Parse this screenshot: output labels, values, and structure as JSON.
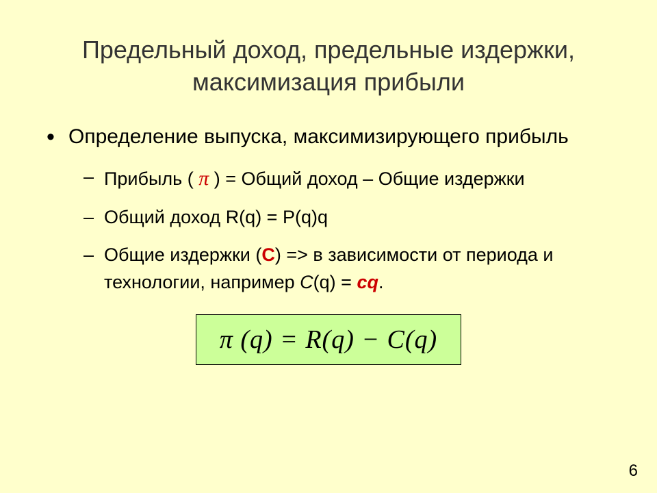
{
  "slide": {
    "background_color": "#ffffcc",
    "title": "Предельный доход, предельные издержки, максимизация прибыли",
    "title_color": "#333333",
    "title_fontsize": 36,
    "body_fontsize": 30,
    "sub_fontsize": 27,
    "text_color": "#000000",
    "accent_color": "#cc0000",
    "bullet_main": "Определение выпуска, максимизирующего прибыль",
    "sub_prefix_1": "Прибыль ( ",
    "sub_pi": "π",
    "sub_suffix_1": " ) = Общий доход – Общие издержки",
    "sub_2": "Общий доход R(q) = P(q)q",
    "sub_prefix_3a": "Общие издержки (",
    "sub_c_red": "C",
    "sub_mid_3": ") => в зависимости от периода и технологии, например ",
    "sub_cq": "C",
    "sub_q": "(q) = ",
    "sub_cq_red": "cq",
    "sub_period": ".",
    "formula": {
      "text": "π (q)  =  R(q) − C(q)",
      "pi": "π",
      "rest": " (q)  =  R(q) − C(q)",
      "background_color": "#ccff99",
      "border_color": "#000000",
      "fontsize": 38
    },
    "page_number": "6"
  }
}
